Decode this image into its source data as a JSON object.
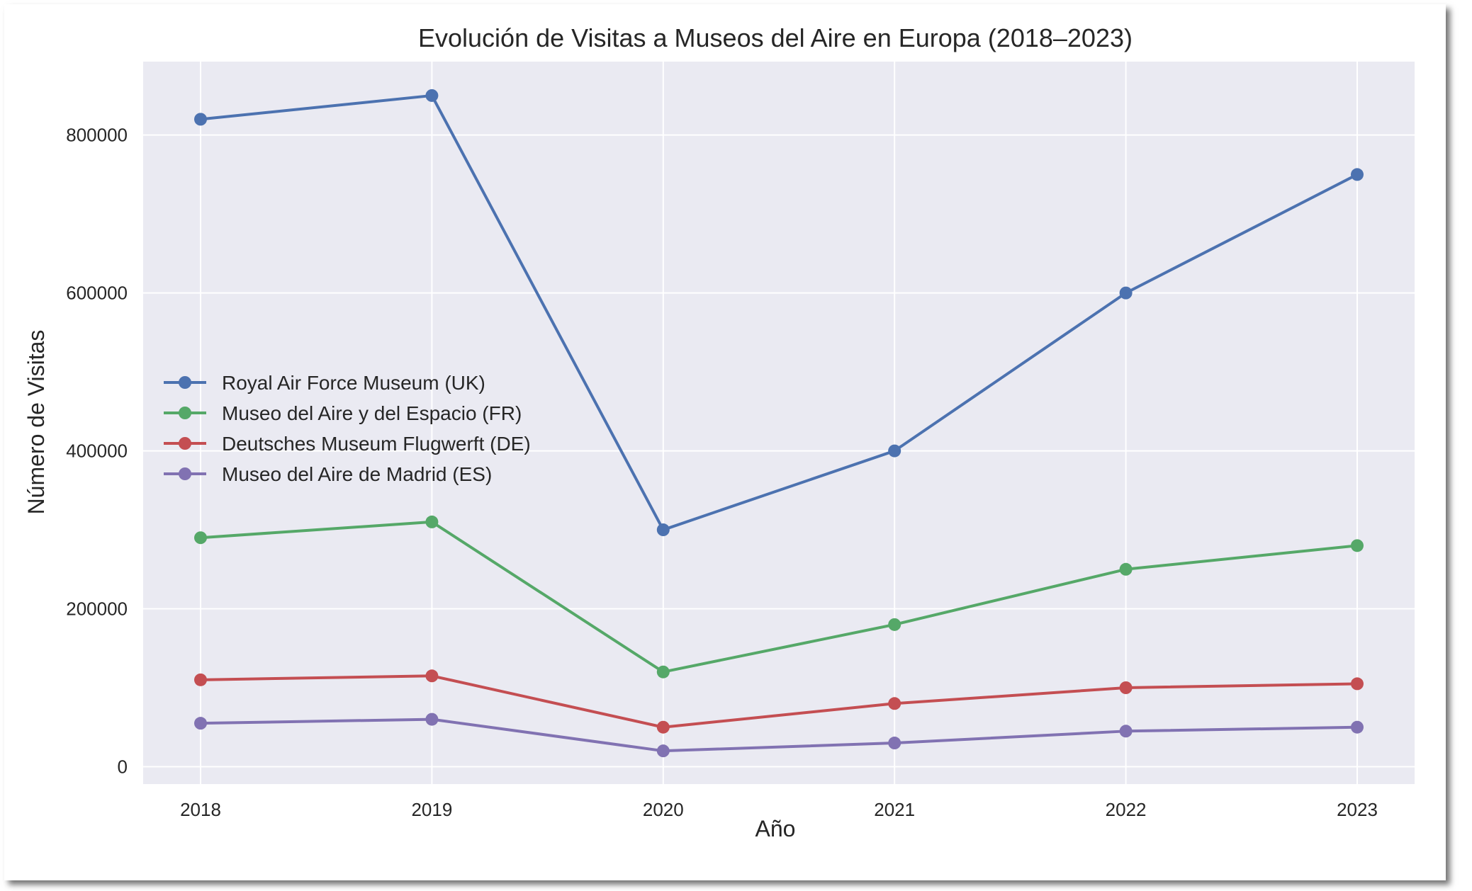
{
  "chart_data": {
    "type": "line",
    "title": "Evolución de Visitas a Museos del Aire en Europa (2018–2023)",
    "xlabel": "Año",
    "ylabel": "Número de Visitas",
    "x": [
      "2018",
      "2019",
      "2020",
      "2021",
      "2022",
      "2023"
    ],
    "xticks": [
      "2018",
      "2019",
      "2020",
      "2021",
      "2022",
      "2023"
    ],
    "yticks": [
      "0",
      "200000",
      "400000",
      "600000",
      "800000"
    ],
    "ytick_values": [
      0,
      200000,
      400000,
      600000,
      800000
    ],
    "ylim": [
      -22000,
      893000
    ],
    "grid": true,
    "legend_position": "center-left",
    "series": [
      {
        "name": "Royal Air Force Museum (UK)",
        "color": "#4c72b0",
        "values": [
          820000,
          850000,
          300000,
          400000,
          600000,
          750000
        ]
      },
      {
        "name": "Museo del Aire y del Espacio (FR)",
        "color": "#55a868",
        "values": [
          290000,
          310000,
          120000,
          180000,
          250000,
          280000
        ]
      },
      {
        "name": "Deutsches Museum Flugwerft (DE)",
        "color": "#c44e52",
        "values": [
          110000,
          115000,
          50000,
          80000,
          100000,
          105000
        ]
      },
      {
        "name": "Museo del Aire de Madrid (ES)",
        "color": "#8172b2",
        "values": [
          55000,
          60000,
          20000,
          30000,
          45000,
          50000
        ]
      }
    ],
    "plot_background": "#eaeaf2",
    "grid_color": "#ffffff"
  }
}
